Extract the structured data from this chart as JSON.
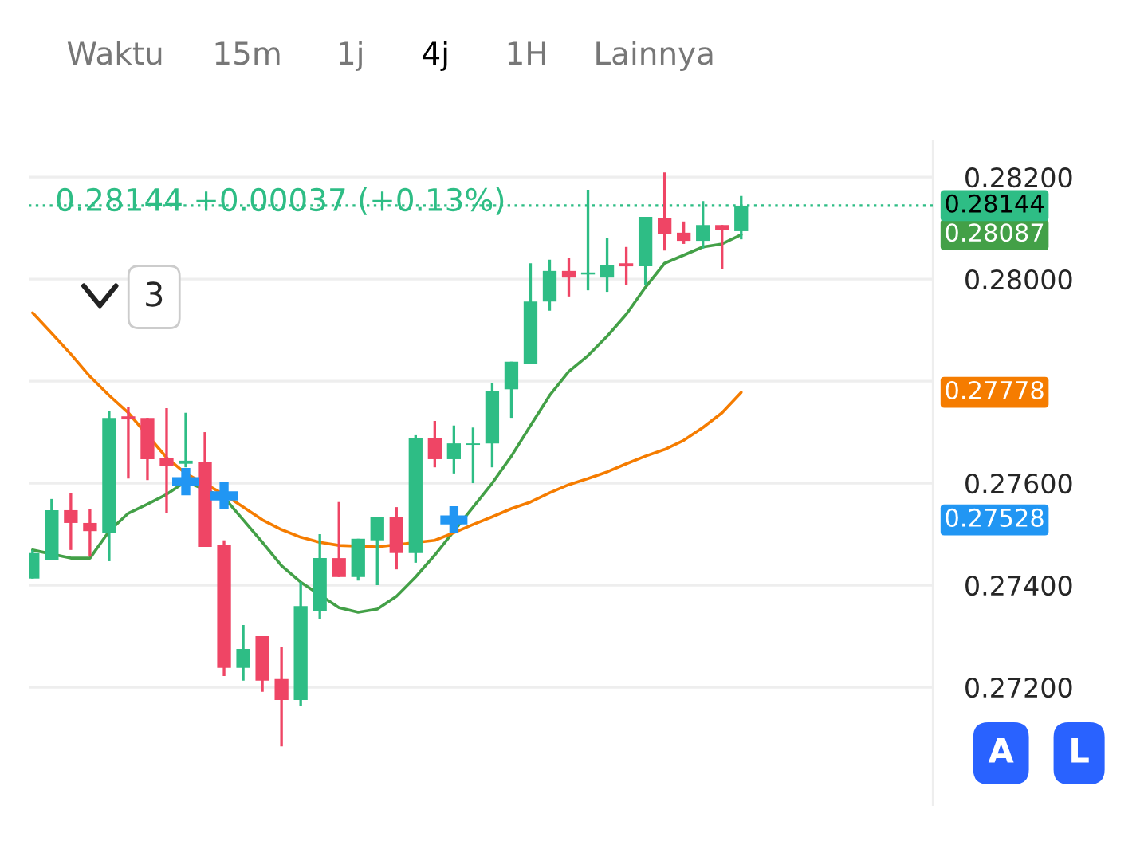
{
  "chart_data": {
    "type": "candlestick",
    "categories": [
      null,
      null,
      null,
      null,
      null,
      null,
      null,
      null,
      null,
      null,
      null,
      null,
      null,
      null,
      null,
      null,
      null,
      null,
      null,
      null,
      null,
      null,
      null,
      null,
      null,
      null,
      null,
      null,
      null,
      null,
      null,
      null,
      null,
      null,
      null,
      null,
      null,
      null
    ],
    "ohlc": [
      [
        0.27413,
        0.27469,
        0.27413,
        0.27463
      ],
      [
        0.2745,
        0.27569,
        0.2745,
        0.27547
      ],
      [
        0.27547,
        0.27581,
        0.27469,
        0.27522
      ],
      [
        0.27522,
        0.2755,
        0.27456,
        0.27506
      ],
      [
        0.27503,
        0.27741,
        0.27447,
        0.27728
      ],
      [
        0.27731,
        0.2775,
        0.27609,
        0.27725
      ],
      [
        0.27728,
        0.27728,
        0.27606,
        0.27647
      ],
      [
        0.2765,
        0.27747,
        0.27541,
        0.27634
      ],
      [
        0.27638,
        0.27738,
        0.27631,
        0.27644
      ],
      [
        0.27641,
        0.277,
        0.27475,
        0.27475
      ],
      [
        0.27478,
        0.27488,
        0.27222,
        0.27238
      ],
      [
        0.27238,
        0.27322,
        0.27213,
        0.27275
      ],
      [
        0.273,
        0.273,
        0.27191,
        0.27213
      ],
      [
        0.27216,
        0.27278,
        0.27084,
        0.27175
      ],
      [
        0.27175,
        0.27406,
        0.27163,
        0.27359
      ],
      [
        0.2735,
        0.275,
        0.27334,
        0.27453
      ],
      [
        0.27453,
        0.27563,
        0.27416,
        0.27416
      ],
      [
        0.27416,
        0.27491,
        0.27409,
        0.27491
      ],
      [
        0.27488,
        0.27534,
        0.274,
        0.27534
      ],
      [
        0.27534,
        0.27553,
        0.27431,
        0.27463
      ],
      [
        0.27463,
        0.27694,
        0.27444,
        0.27688
      ],
      [
        0.27688,
        0.27722,
        0.27631,
        0.27647
      ],
      [
        0.27647,
        0.27713,
        0.27619,
        0.27678
      ],
      [
        0.27675,
        0.27709,
        0.276,
        0.27678
      ],
      [
        0.27678,
        0.27797,
        0.27631,
        0.27781
      ],
      [
        0.27784,
        0.27838,
        0.27728,
        0.27838
      ],
      [
        0.27834,
        0.28031,
        0.27834,
        0.27956
      ],
      [
        0.27956,
        0.28038,
        0.27938,
        0.28016
      ],
      [
        0.28016,
        0.28041,
        0.27966,
        0.28003
      ],
      [
        0.28009,
        0.28175,
        0.27978,
        0.28013
      ],
      [
        0.28003,
        0.28081,
        0.27975,
        0.28028
      ],
      [
        0.28031,
        0.28063,
        0.27988,
        0.28025
      ],
      [
        0.28025,
        0.28122,
        0.27988,
        0.28122
      ],
      [
        0.28119,
        0.28209,
        0.28056,
        0.28088
      ],
      [
        0.28091,
        0.28113,
        0.28069,
        0.28075
      ],
      [
        0.28075,
        0.28153,
        0.2806,
        0.28106
      ],
      [
        0.28106,
        0.28106,
        0.28019,
        0.28097
      ],
      [
        0.28094,
        0.28163,
        0.28078,
        0.28144
      ]
    ],
    "series": [
      {
        "type": "line",
        "color": "#43a047",
        "values": [
          0.27469,
          null,
          0.27453,
          0.27453,
          0.27506,
          0.27541,
          0.27559,
          0.27578,
          0.27603,
          null,
          0.27572,
          0.27528,
          0.27484,
          0.27438,
          0.27406,
          null,
          0.27356,
          0.27347,
          0.27353,
          0.27378,
          0.27416,
          0.27459,
          0.27506,
          0.27553,
          0.276,
          0.27653,
          0.27713,
          0.27772,
          0.27819,
          0.2785,
          0.27888,
          0.27931,
          0.27984,
          0.28031,
          0.28047,
          0.28063,
          0.28069,
          0.28087
        ]
      },
      {
        "type": "line",
        "color": "#f57c00",
        "values": [
          0.27934,
          0.27894,
          0.27853,
          0.27809,
          0.27772,
          0.27738,
          null,
          0.2765,
          0.27619,
          null,
          0.27578,
          0.27553,
          0.27528,
          0.27509,
          0.27494,
          0.27484,
          0.27478,
          null,
          0.27475,
          null,
          null,
          0.27488,
          0.27503,
          0.27519,
          0.27534,
          0.2755,
          0.27563,
          0.27581,
          0.27597,
          0.27609,
          0.27622,
          0.27638,
          0.27653,
          0.27666,
          0.27684,
          0.27709,
          0.27738,
          0.27778
        ]
      },
      {
        "type": "scatter",
        "color": "#2196f3",
        "marker": "cross",
        "values": [
          null,
          null,
          null,
          null,
          null,
          null,
          null,
          null,
          0.27603,
          null,
          0.27575,
          null,
          null,
          null,
          null,
          null,
          null,
          null,
          null,
          null,
          null,
          null,
          0.27528,
          null,
          null,
          null,
          null,
          null,
          null,
          null,
          null,
          null,
          null,
          null,
          null,
          null,
          null,
          null
        ]
      }
    ],
    "ylim": [
      0.26969,
      0.28272
    ],
    "yticks": [
      {
        "value": 0.272,
        "label": "0.27200"
      },
      {
        "value": 0.274,
        "label": "0.27400"
      },
      {
        "value": 0.276,
        "label": "0.27600"
      },
      {
        "value": 0.278,
        "label": null
      },
      {
        "value": 0.28,
        "label": "0.28000"
      },
      {
        "value": 0.282,
        "label": "0.28200"
      }
    ],
    "grid": true,
    "ref_lines": [
      {
        "axis": "y",
        "value": 0.28144,
        "label": "0.28144",
        "color": "#2ebd85",
        "line_style": "dotted"
      }
    ],
    "annotations": [
      "0.28144 +0.00037 (+0.13%)",
      "Waktu",
      "15m",
      "1j",
      "4j",
      "1H",
      "Lainnya",
      "3",
      "A",
      "L",
      "0.28087",
      "0.27778",
      "0.27528"
    ]
  }
}
